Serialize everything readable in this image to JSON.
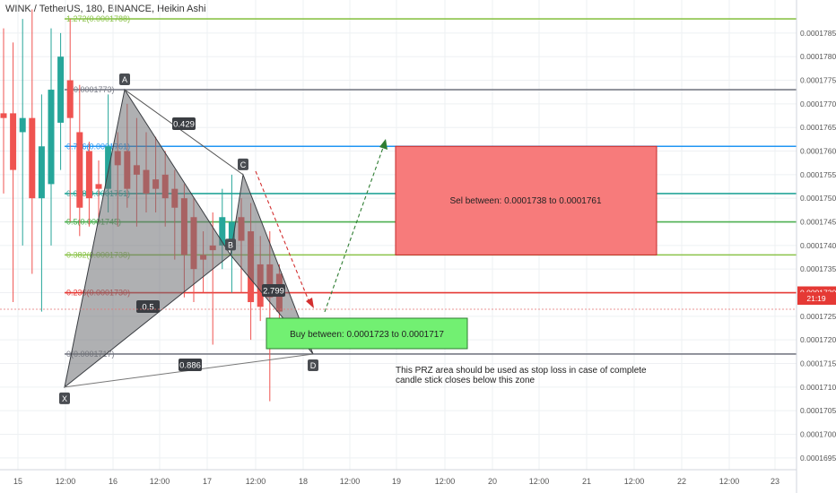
{
  "header": {
    "symbol_title": "WINK / TetherUS, 180, BINANCE, Heikin Ashi"
  },
  "chart_data": {
    "type": "candlestick",
    "title": "WINK / TetherUS, 180, BINANCE, Heikin Ashi",
    "ylim": [
      0.00016925,
      0.0001792
    ],
    "y_ticks": [
      "0.0001695",
      "0.0001700",
      "0.0001705",
      "0.0001710",
      "0.0001715",
      "0.0001720",
      "0.0001725",
      "0.0001730",
      "0.0001735",
      "0.0001740",
      "0.0001745",
      "0.0001750",
      "0.0001755",
      "0.0001760",
      "0.0001765",
      "0.0001770",
      "0.0001775",
      "0.0001780",
      "0.0001785"
    ],
    "x_ticks": [
      "15",
      "12:00",
      "16",
      "12:00",
      "17",
      "12:00",
      "18",
      "12:00",
      "19",
      "12:00",
      "20",
      "12:00",
      "21",
      "12:00",
      "22",
      "12:00",
      "23"
    ],
    "price_badge": {
      "value": "0.0001730",
      "color": "#e53935"
    },
    "time_badge": {
      "value": "21:19",
      "color": "#e53935"
    },
    "candles": [
      {
        "o": 0.0001768,
        "h": 0.0001786,
        "l": 0.0001751,
        "c": 0.0001767
      },
      {
        "o": 0.0001768,
        "h": 0.0001783,
        "l": 0.0001728,
        "c": 0.0001756
      },
      {
        "o": 0.0001764,
        "h": 0.0001788,
        "l": 0.000174,
        "c": 0.0001767
      },
      {
        "o": 0.0001767,
        "h": 0.000179,
        "l": 0.0001734,
        "c": 0.000175
      },
      {
        "o": 0.000175,
        "h": 0.0001772,
        "l": 0.0001726,
        "c": 0.0001761
      },
      {
        "o": 0.0001753,
        "h": 0.0001786,
        "l": 0.000174,
        "c": 0.0001773
      },
      {
        "o": 0.0001766,
        "h": 0.0001785,
        "l": 0.0001756,
        "c": 0.000178
      },
      {
        "o": 0.0001775,
        "h": 0.0001788,
        "l": 0.0001745,
        "c": 0.0001767
      },
      {
        "o": 0.0001764,
        "h": 0.0001774,
        "l": 0.0001742,
        "c": 0.0001748
      },
      {
        "o": 0.000176,
        "h": 0.0001762,
        "l": 0.0001744,
        "c": 0.000175
      },
      {
        "o": 0.0001753,
        "h": 0.0001758,
        "l": 0.0001745,
        "c": 0.0001752
      },
      {
        "o": 0.0001752,
        "h": 0.0001772,
        "l": 0.0001747,
        "c": 0.0001761
      },
      {
        "o": 0.000176,
        "h": 0.0001764,
        "l": 0.0001744,
        "c": 0.0001757
      },
      {
        "o": 0.000176,
        "h": 0.000177,
        "l": 0.0001748,
        "c": 0.0001752
      },
      {
        "o": 0.0001757,
        "h": 0.0001767,
        "l": 0.0001744,
        "c": 0.0001755
      },
      {
        "o": 0.0001756,
        "h": 0.0001764,
        "l": 0.0001747,
        "c": 0.0001751
      },
      {
        "o": 0.0001754,
        "h": 0.0001763,
        "l": 0.0001747,
        "c": 0.0001752
      },
      {
        "o": 0.0001755,
        "h": 0.000176,
        "l": 0.0001744,
        "c": 0.000175
      },
      {
        "o": 0.0001752,
        "h": 0.0001756,
        "l": 0.0001737,
        "c": 0.0001748
      },
      {
        "o": 0.000175,
        "h": 0.0001753,
        "l": 0.0001729,
        "c": 0.0001738
      },
      {
        "o": 0.0001746,
        "h": 0.000175,
        "l": 0.0001728,
        "c": 0.0001735
      },
      {
        "o": 0.0001738,
        "h": 0.0001743,
        "l": 0.000173,
        "c": 0.0001737
      },
      {
        "o": 0.000174,
        "h": 0.0001747,
        "l": 0.0001719,
        "c": 0.0001739
      },
      {
        "o": 0.000174,
        "h": 0.0001752,
        "l": 0.0001735,
        "c": 0.0001746
      },
      {
        "o": 0.000174,
        "h": 0.0001755,
        "l": 0.000173,
        "c": 0.0001745
      },
      {
        "o": 0.0001746,
        "h": 0.000175,
        "l": 0.000173,
        "c": 0.0001741
      },
      {
        "o": 0.0001743,
        "h": 0.0001749,
        "l": 0.000172,
        "c": 0.0001728
      },
      {
        "o": 0.0001736,
        "h": 0.0001742,
        "l": 0.0001724,
        "c": 0.0001727
      },
      {
        "o": 0.0001736,
        "h": 0.0001743,
        "l": 0.0001707,
        "c": 0.0001729
      },
      {
        "o": 0.0001734,
        "h": 0.0001736,
        "l": 0.0001724,
        "c": 0.0001726
      }
    ],
    "fib_levels": [
      {
        "label": "1.272(0.0001788)",
        "value": 0.0001788,
        "color": "#8bc34a"
      },
      {
        "label": "1(0.0001773)",
        "value": 0.0001773,
        "color": "#787b86"
      },
      {
        "label": "0.786(0.0001761)",
        "value": 0.0001761,
        "color": "#2196f3"
      },
      {
        "label": "0.618(0.0001751)",
        "value": 0.0001751,
        "color": "#26a69a"
      },
      {
        "label": "0.5(0.0001745)",
        "value": 0.0001745,
        "color": "#4caf50"
      },
      {
        "label": "0.382(0.0001738)",
        "value": 0.0001738,
        "color": "#8bc34a"
      },
      {
        "label": "0.236(0.0001730)",
        "value": 0.000173,
        "color": "#e53935"
      },
      {
        "label": "0(0.0001717)",
        "value": 0.0001717,
        "color": "#787b86"
      }
    ],
    "harmonic_points": [
      {
        "name": "X",
        "value": 0.000171
      },
      {
        "name": "A",
        "value": 0.0001773
      },
      {
        "name": "B",
        "value": 0.0001738
      },
      {
        "name": "C",
        "value": 0.0001755
      },
      {
        "name": "D",
        "value": 0.0001717
      }
    ],
    "ratios": [
      "0.429",
      "0.5",
      "2.799",
      "0.886"
    ],
    "sell_zone": {
      "text": "Sel between: 0.0001738 to 0.0001761",
      "low": 0.0001738,
      "high": 0.0001761,
      "color": "#f77b7b"
    },
    "buy_zone": {
      "text": "Buy between: 0.0001723 to 0.0001717",
      "low": 0.0001717,
      "high": 0.0001723,
      "color": "#72f072"
    },
    "note": [
      "This PRZ area should be used as stop loss in case of complete",
      "candle stick closes below this zone"
    ],
    "colors": {
      "up": "#26a69a",
      "down": "#ef5350",
      "grid": "#eef0f3",
      "pattern_fill": "#6d6f72",
      "axis_text": "#555555"
    }
  }
}
